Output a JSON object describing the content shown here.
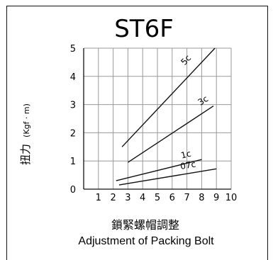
{
  "chart_data": {
    "type": "line",
    "title": "ST6F",
    "ylabel": "扭力",
    "ylabel_unit": "(Kgf · m)",
    "xlabel": "鎖緊螺帽調整",
    "xlabel_en": "Adjustment of Packing Bolt",
    "xlim": [
      0,
      10
    ],
    "ylim": [
      0,
      5
    ],
    "x_ticks": [
      {
        "value": 1,
        "label": "1"
      },
      {
        "value": 2,
        "label": "2"
      },
      {
        "value": 3,
        "label": "3"
      },
      {
        "value": 4,
        "label": "4"
      },
      {
        "value": 5,
        "label": "5"
      },
      {
        "value": 6,
        "label": "6"
      },
      {
        "value": 7,
        "label": "7"
      },
      {
        "value": 8,
        "label": "8"
      },
      {
        "value": 9,
        "label": "9"
      },
      {
        "value": 10,
        "label": "10"
      }
    ],
    "y_ticks": [
      {
        "value": 0,
        "label": "0"
      },
      {
        "value": 1,
        "label": "1"
      },
      {
        "value": 2,
        "label": "2"
      },
      {
        "value": 3,
        "label": "3"
      },
      {
        "value": 4,
        "label": "4"
      },
      {
        "value": 5,
        "label": "5"
      }
    ],
    "grid": true,
    "series": [
      {
        "name": "5c",
        "points": [
          [
            2.6,
            1.5
          ],
          [
            8.9,
            5.0
          ]
        ]
      },
      {
        "name": "3c",
        "points": [
          [
            3.0,
            0.95
          ],
          [
            8.8,
            2.95
          ]
        ]
      },
      {
        "name": "1c",
        "points": [
          [
            2.2,
            0.3
          ],
          [
            8.0,
            1.05
          ]
        ]
      },
      {
        "name": "07c",
        "points": [
          [
            2.4,
            0.15
          ],
          [
            9.0,
            0.72
          ]
        ]
      }
    ],
    "colors": {
      "line": "#111111",
      "grid": "#9a9a9a"
    }
  }
}
